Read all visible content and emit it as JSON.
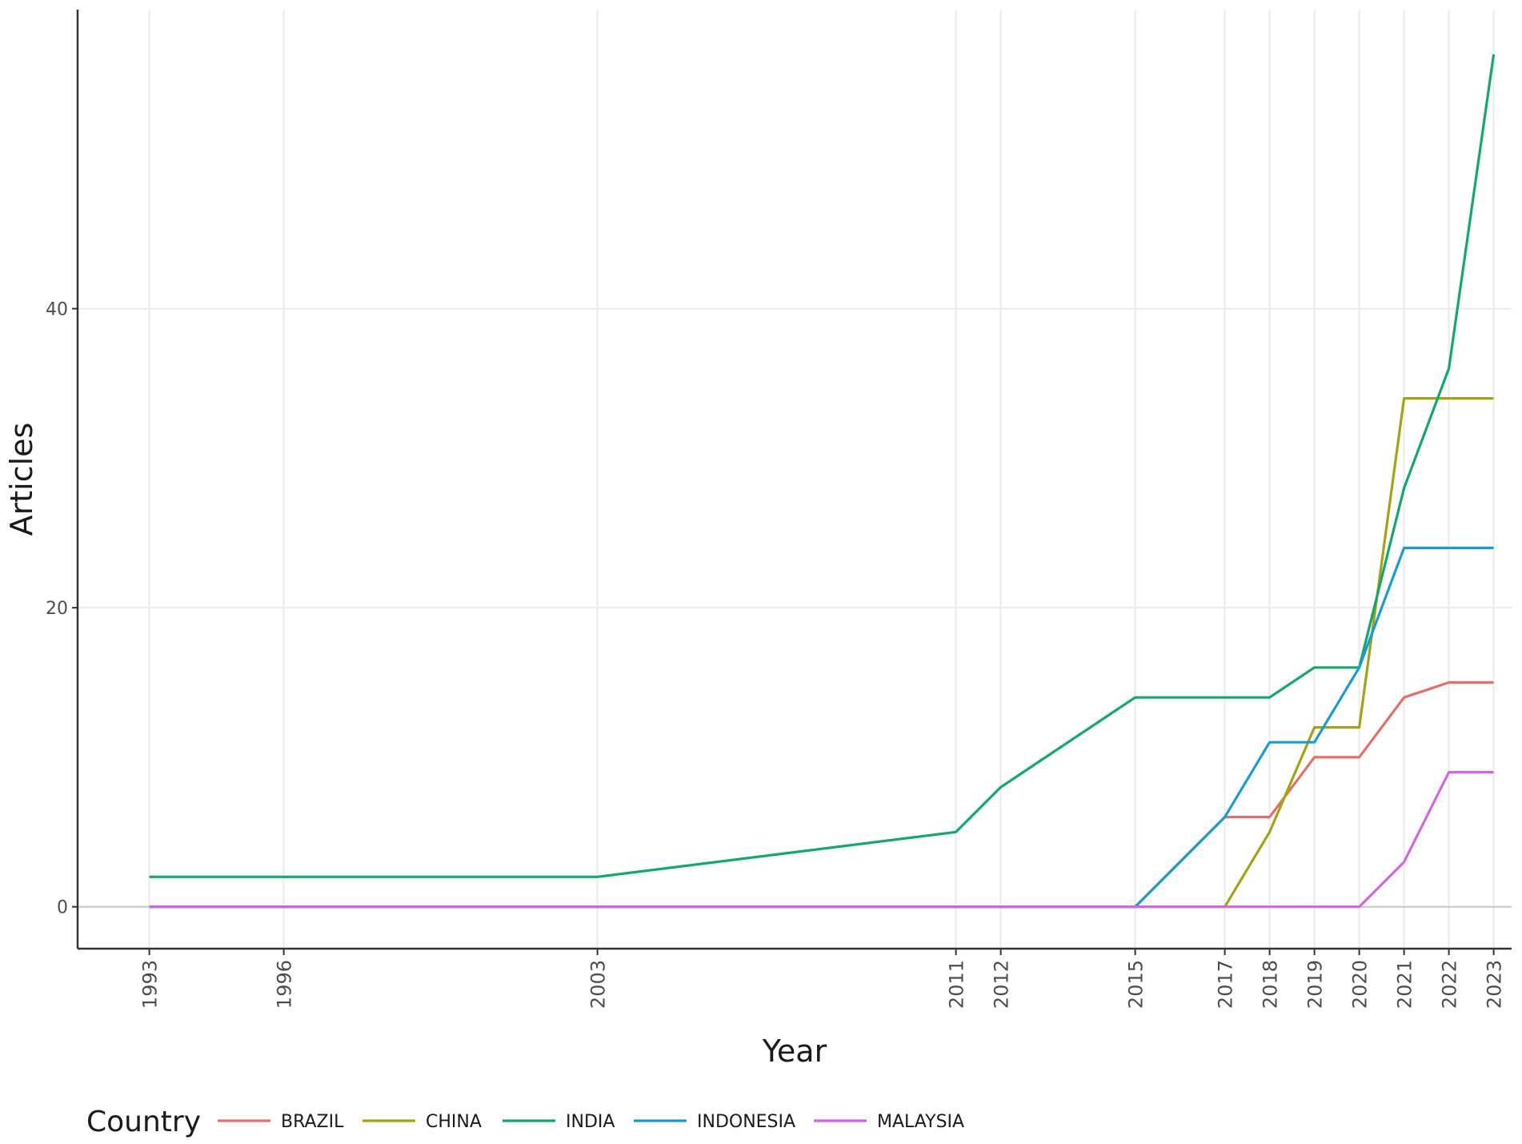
{
  "chart_data": {
    "type": "line",
    "xlabel": "Year",
    "ylabel": "Articles",
    "x": [
      1993,
      1996,
      2003,
      2011,
      2012,
      2015,
      2017,
      2018,
      2019,
      2020,
      2021,
      2022,
      2023
    ],
    "x_tick_labels": [
      "1993",
      "1996",
      "2003",
      "2011",
      "2012",
      "2015",
      "2017",
      "2018",
      "2019",
      "2020",
      "2021",
      "2022",
      "2023"
    ],
    "xlim": [
      1991.4,
      2023.4
    ],
    "y_ticks": [
      0,
      20,
      40
    ],
    "y_tick_labels": [
      "0",
      "20",
      "40"
    ],
    "ylim": [
      -2.8,
      60
    ],
    "grid": true,
    "legend": {
      "title": "Country",
      "position": "bottom"
    },
    "series": [
      {
        "name": "BRAZIL",
        "color": "#E36F67",
        "values": [
          0,
          0,
          0,
          0,
          0,
          0,
          6,
          6,
          10,
          10,
          14,
          15,
          15
        ]
      },
      {
        "name": "CHINA",
        "color": "#A3A316",
        "values": [
          0,
          0,
          0,
          0,
          0,
          0,
          0,
          5,
          12,
          12,
          34,
          34,
          34
        ]
      },
      {
        "name": "INDIA",
        "color": "#13A86B",
        "values": [
          2,
          2,
          2,
          5,
          8,
          14,
          14,
          14,
          16,
          16,
          28,
          36,
          57
        ]
      },
      {
        "name": "INDONESIA",
        "color": "#1A9BD7",
        "values": [
          0,
          0,
          0,
          0,
          0,
          0,
          6,
          11,
          11,
          16,
          24,
          24,
          24
        ]
      },
      {
        "name": "MALAYSIA",
        "color": "#D563E3",
        "values": [
          0,
          0,
          0,
          0,
          0,
          0,
          0,
          0,
          0,
          0,
          3,
          9,
          9
        ]
      }
    ]
  }
}
